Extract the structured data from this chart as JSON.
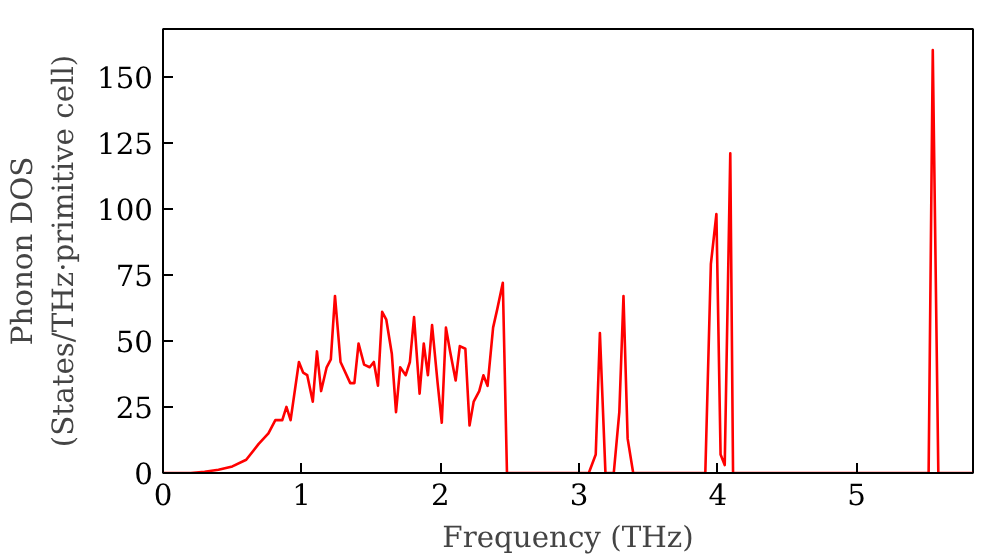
{
  "chart_data": {
    "type": "line",
    "xlabel": "Frequency (THz)",
    "ylabel": "Phonon DOS\n(States/THz·primitive cell)",
    "xlim": [
      0,
      5.84
    ],
    "ylim": [
      0,
      168
    ],
    "xticks": [
      0,
      1,
      2,
      3,
      4,
      5
    ],
    "yticks": [
      0,
      25,
      50,
      75,
      100,
      125,
      150
    ],
    "grid": false,
    "series": [
      {
        "color": "#ff0000",
        "x": [
          0,
          0.2,
          0.3,
          0.4,
          0.5,
          0.6,
          0.69,
          0.76,
          0.81,
          0.86,
          0.89,
          0.92,
          0.98,
          1.01,
          1.04,
          1.08,
          1.11,
          1.14,
          1.18,
          1.21,
          1.24,
          1.28,
          1.35,
          1.38,
          1.41,
          1.45,
          1.49,
          1.52,
          1.55,
          1.58,
          1.61,
          1.65,
          1.68,
          1.71,
          1.75,
          1.78,
          1.81,
          1.85,
          1.88,
          1.91,
          1.94,
          1.98,
          2.01,
          2.04,
          2.07,
          2.11,
          2.14,
          2.18,
          2.21,
          2.24,
          2.28,
          2.31,
          2.34,
          2.38,
          2.41,
          2.45,
          2.48,
          3.07,
          3.12,
          3.15,
          3.19,
          3.25,
          3.29,
          3.32,
          3.35,
          3.39,
          3.91,
          3.95,
          3.99,
          4.02,
          4.05,
          4.09,
          4.11,
          5.52,
          5.55,
          5.59,
          5.84
        ],
        "values": [
          0,
          0,
          0.5,
          1.2,
          2.5,
          5,
          11,
          15,
          20,
          20,
          25,
          20,
          42,
          38,
          37,
          27,
          46,
          31,
          40,
          43,
          67,
          42,
          34,
          34,
          49,
          41,
          40,
          42,
          33,
          61,
          58,
          45,
          23,
          40,
          37,
          42,
          59,
          30,
          49,
          37,
          56,
          34,
          19,
          55,
          46,
          35,
          48,
          47,
          18,
          27,
          31,
          37,
          33,
          55,
          62,
          72,
          0,
          0,
          7,
          53,
          0,
          0,
          23,
          67,
          13,
          0,
          0,
          79,
          98,
          7,
          3,
          121,
          0,
          0,
          160,
          0,
          0
        ]
      }
    ]
  }
}
